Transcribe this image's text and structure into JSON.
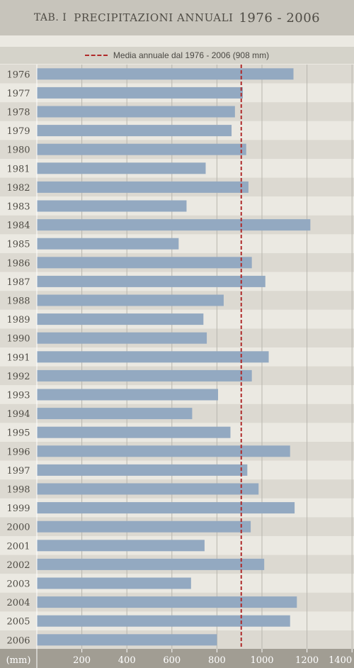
{
  "header": {
    "title_label": "TAB. I",
    "title_text": "PRECIPITAZIONI ANNUALI",
    "title_range": "1976 - 2006",
    "background": "#c7c4bb"
  },
  "legend": {
    "label": "Media annuale dal 1976 - 2006 (908 mm)",
    "line_color": "#b02a2a"
  },
  "chart_data": {
    "type": "bar",
    "orientation": "horizontal",
    "title": "PRECIPITAZIONI ANNUALI 1976 - 2006",
    "unit_label": "(mm)",
    "categories": [
      "1976",
      "1977",
      "1978",
      "1979",
      "1980",
      "1981",
      "1982",
      "1983",
      "1984",
      "1985",
      "1986",
      "1987",
      "1988",
      "1989",
      "1990",
      "1991",
      "1992",
      "1993",
      "1994",
      "1995",
      "1996",
      "1997",
      "1998",
      "1999",
      "2000",
      "2001",
      "2002",
      "2003",
      "2004",
      "2005",
      "2006"
    ],
    "values": [
      1140,
      915,
      880,
      865,
      930,
      750,
      940,
      665,
      1215,
      630,
      955,
      1015,
      830,
      740,
      755,
      1030,
      955,
      805,
      690,
      860,
      1125,
      935,
      985,
      1145,
      950,
      745,
      1010,
      685,
      1155,
      1125,
      800
    ],
    "reference_line": {
      "value": 908,
      "label": "Media annuale dal 1976 - 2006 (908 mm)"
    },
    "xlim": [
      0,
      1400
    ],
    "xticks": [
      200,
      400,
      600,
      800,
      1000,
      1200,
      1400
    ],
    "grid": true,
    "colors": {
      "bar": "#93a9c1",
      "reference": "#b02a2a",
      "row_light": "#ebe9e2",
      "row_dark": "#dcd9d1",
      "axis_band": "#a19d93",
      "grid": "#b8b6ae",
      "label_text": "#4f4c45"
    }
  }
}
